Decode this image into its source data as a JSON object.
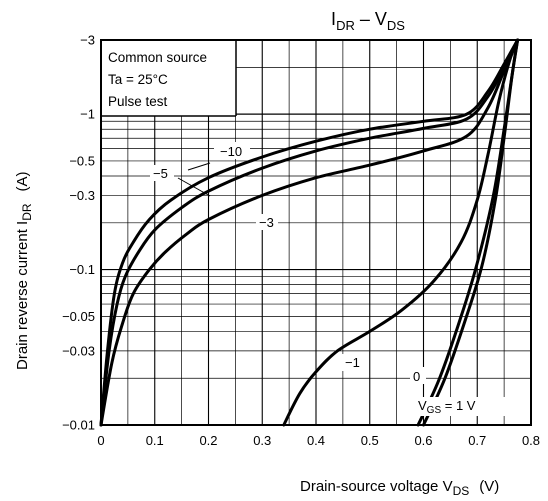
{
  "chart_data": {
    "type": "line",
    "title": {
      "main": "I",
      "sub1": "DR",
      "mid": " – V",
      "sub2": "DS"
    },
    "xlabel": {
      "main": "Drain-source voltage  V",
      "sub": "DS",
      "unit": "(V)"
    },
    "ylabel": {
      "main": "Drain reverse current   I",
      "sub": "DR",
      "unit": "(A)"
    },
    "xlim": [
      0,
      0.8
    ],
    "ylim": [
      -0.01,
      -3
    ],
    "yscale": "log",
    "grid": true,
    "x_ticks": [
      {
        "v": 0,
        "label": "0"
      },
      {
        "v": 0.1,
        "label": "0.1"
      },
      {
        "v": 0.2,
        "label": "0.2"
      },
      {
        "v": 0.3,
        "label": "0.3"
      },
      {
        "v": 0.4,
        "label": "0.4"
      },
      {
        "v": 0.5,
        "label": "0.5"
      },
      {
        "v": 0.6,
        "label": "0.6"
      },
      {
        "v": 0.7,
        "label": "0.7"
      },
      {
        "v": 0.8,
        "label": "0.8"
      }
    ],
    "y_ticks": [
      {
        "v": 0.01,
        "label": "−0.01"
      },
      {
        "v": 0.03,
        "label": "−0.03"
      },
      {
        "v": 0.05,
        "label": "−0.05"
      },
      {
        "v": 0.1,
        "label": "−0.1"
      },
      {
        "v": 0.3,
        "label": "−0.3"
      },
      {
        "v": 0.5,
        "label": "−0.5"
      },
      {
        "v": 1,
        "label": "−1"
      },
      {
        "v": 3,
        "label": "−3"
      }
    ],
    "conditions": [
      "Common source",
      "Ta = 25°C",
      "Pulse test"
    ],
    "legend_placement": "top-left",
    "series": [
      {
        "name": "−10",
        "x": [
          0.0,
          0.012,
          0.025,
          0.04,
          0.06,
          0.09,
          0.13,
          0.2,
          0.3,
          0.4,
          0.5,
          0.6,
          0.68,
          0.72,
          0.75,
          0.775
        ],
        "y": [
          -0.01,
          -0.03,
          -0.07,
          -0.11,
          -0.15,
          -0.21,
          -0.28,
          -0.39,
          -0.53,
          -0.67,
          -0.8,
          -0.9,
          -1.0,
          -1.4,
          -2.1,
          -3.0
        ]
      },
      {
        "name": "−5",
        "x": [
          0.0,
          0.015,
          0.03,
          0.045,
          0.07,
          0.1,
          0.15,
          0.2,
          0.3,
          0.4,
          0.5,
          0.6,
          0.68,
          0.72,
          0.75,
          0.775
        ],
        "y": [
          -0.01,
          -0.03,
          -0.06,
          -0.09,
          -0.13,
          -0.18,
          -0.25,
          -0.32,
          -0.45,
          -0.58,
          -0.7,
          -0.81,
          -0.93,
          -1.3,
          -2.0,
          -3.0
        ]
      },
      {
        "name": "−3",
        "x": [
          0.0,
          0.02,
          0.04,
          0.06,
          0.09,
          0.12,
          0.16,
          0.2,
          0.3,
          0.4,
          0.5,
          0.6,
          0.68,
          0.72,
          0.75,
          0.775
        ],
        "y": [
          -0.01,
          -0.025,
          -0.045,
          -0.07,
          -0.1,
          -0.13,
          -0.17,
          -0.21,
          -0.3,
          -0.39,
          -0.47,
          -0.58,
          -0.72,
          -1.1,
          -1.9,
          -3.0
        ]
      },
      {
        "name": "−1",
        "x": [
          0.34,
          0.37,
          0.4,
          0.44,
          0.5,
          0.56,
          0.62,
          0.67,
          0.7,
          0.72,
          0.74,
          0.76,
          0.775
        ],
        "y": [
          -0.01,
          -0.016,
          -0.022,
          -0.03,
          -0.04,
          -0.055,
          -0.085,
          -0.15,
          -0.28,
          -0.55,
          -1.2,
          -2.2,
          -3.0
        ]
      },
      {
        "name": "0",
        "x": [
          0.59,
          0.63,
          0.67,
          0.7,
          0.73,
          0.75,
          0.765,
          0.775
        ],
        "y": [
          -0.01,
          -0.02,
          -0.05,
          -0.11,
          -0.3,
          -0.8,
          -1.8,
          -3.0
        ]
      },
      {
        "name": "VGS = 1 V",
        "x": [
          0.6,
          0.64,
          0.68,
          0.71,
          0.735,
          0.752,
          0.765,
          0.775
        ],
        "y": [
          -0.01,
          -0.02,
          -0.05,
          -0.11,
          -0.3,
          -0.8,
          -1.8,
          -3.0
        ]
      }
    ],
    "curve_labels": [
      {
        "series": "−10",
        "text": "−10"
      },
      {
        "series": "−5",
        "text": "−5"
      },
      {
        "series": "−3",
        "text": "−3"
      },
      {
        "series": "−1",
        "text": "−1"
      },
      {
        "series": "0",
        "text": "0"
      },
      {
        "series": "VGS = 1 V",
        "text_main": "V",
        "text_sub": "GS",
        "text_rest": " = 1 V"
      }
    ]
  }
}
